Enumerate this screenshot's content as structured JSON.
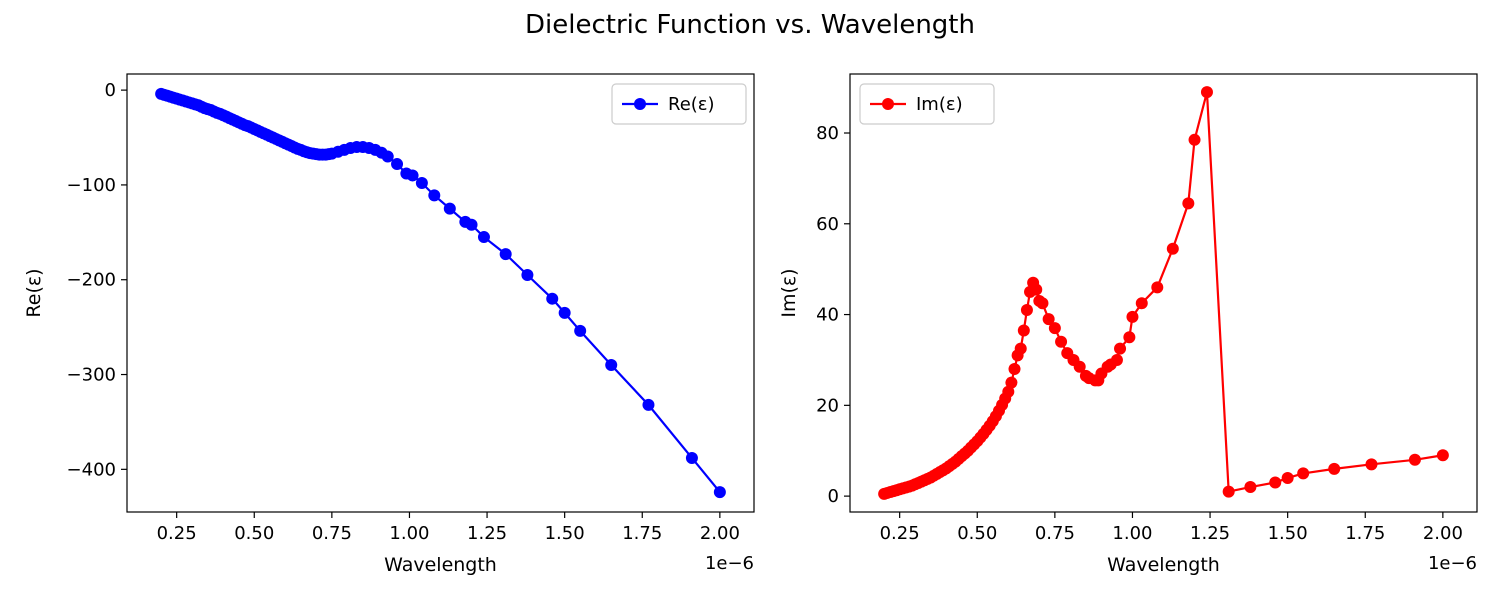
{
  "figure": {
    "title": "Dielectric Function vs. Wavelength"
  },
  "chart_data": [
    {
      "type": "line",
      "marker": "circle",
      "color": "#0000ff",
      "xlabel": "Wavelength",
      "ylabel": "Re(ε)",
      "x_offset_label": "1e−6",
      "xlim": [
        0.09,
        2.11
      ],
      "ylim": [
        -445,
        17
      ],
      "xticks": [
        0.25,
        0.5,
        0.75,
        1.0,
        1.25,
        1.5,
        1.75,
        2.0
      ],
      "xtick_labels": [
        "0.25",
        "0.50",
        "0.75",
        "1.00",
        "1.25",
        "1.50",
        "1.75",
        "2.00"
      ],
      "yticks": [
        0,
        -100,
        -200,
        -300,
        -400
      ],
      "ytick_labels": [
        "0",
        "−100",
        "−200",
        "−300",
        "−400"
      ],
      "grid": false,
      "legend": {
        "position": "top-right",
        "entries": [
          "Re(ε)"
        ]
      },
      "series": [
        {
          "name": "Re(ε)",
          "x": [
            0.2,
            0.21,
            0.22,
            0.23,
            0.24,
            0.25,
            0.26,
            0.27,
            0.28,
            0.29,
            0.3,
            0.31,
            0.32,
            0.33,
            0.34,
            0.35,
            0.36,
            0.37,
            0.38,
            0.39,
            0.4,
            0.41,
            0.42,
            0.43,
            0.44,
            0.45,
            0.46,
            0.47,
            0.48,
            0.49,
            0.5,
            0.51,
            0.52,
            0.53,
            0.54,
            0.55,
            0.56,
            0.57,
            0.58,
            0.59,
            0.6,
            0.61,
            0.62,
            0.63,
            0.64,
            0.65,
            0.66,
            0.67,
            0.68,
            0.69,
            0.7,
            0.71,
            0.72,
            0.73,
            0.74,
            0.75,
            0.77,
            0.79,
            0.81,
            0.83,
            0.85,
            0.87,
            0.89,
            0.91,
            0.93,
            0.96,
            0.99,
            1.01,
            1.04,
            1.08,
            1.13,
            1.18,
            1.2,
            1.24,
            1.31,
            1.38,
            1.46,
            1.5,
            1.55,
            1.65,
            1.77,
            1.91,
            2.0
          ],
          "y": [
            -4,
            -5,
            -6,
            -7,
            -8,
            -9,
            -10,
            -11,
            -12,
            -13,
            -14,
            -15,
            -16,
            -17.5,
            -19,
            -20,
            -21,
            -22.5,
            -24,
            -25,
            -26.5,
            -28,
            -29.5,
            -31,
            -32.5,
            -34,
            -35.5,
            -37,
            -38,
            -39.5,
            -41,
            -42.5,
            -44,
            -45.5,
            -47,
            -48.5,
            -50,
            -51.5,
            -53,
            -54.5,
            -56,
            -57.5,
            -59,
            -60.5,
            -62,
            -63,
            -64.5,
            -65.5,
            -66.5,
            -67,
            -67.5,
            -68,
            -68,
            -68,
            -67.5,
            -67,
            -65,
            -63,
            -61,
            -60,
            -60,
            -61,
            -63,
            -66,
            -70,
            -78,
            -88,
            -90,
            -98,
            -111,
            -125,
            -139,
            -142,
            -155,
            -173,
            -195,
            -220,
            -235,
            -254,
            -290,
            -332,
            -388,
            -424
          ]
        }
      ]
    },
    {
      "type": "line",
      "marker": "circle",
      "color": "#ff0000",
      "xlabel": "Wavelength",
      "ylabel": "Im(ε)",
      "x_offset_label": "1e−6",
      "xlim": [
        0.09,
        2.11
      ],
      "ylim": [
        -3.5,
        93
      ],
      "xticks": [
        0.25,
        0.5,
        0.75,
        1.0,
        1.25,
        1.5,
        1.75,
        2.0
      ],
      "xtick_labels": [
        "0.25",
        "0.50",
        "0.75",
        "1.00",
        "1.25",
        "1.50",
        "1.75",
        "2.00"
      ],
      "yticks": [
        0,
        20,
        40,
        60,
        80
      ],
      "ytick_labels": [
        "0",
        "20",
        "40",
        "60",
        "80"
      ],
      "grid": false,
      "legend": {
        "position": "top-left",
        "entries": [
          "Im(ε)"
        ]
      },
      "series": [
        {
          "name": "Im(ε)",
          "x": [
            0.2,
            0.21,
            0.22,
            0.23,
            0.24,
            0.25,
            0.26,
            0.27,
            0.28,
            0.29,
            0.3,
            0.31,
            0.32,
            0.33,
            0.34,
            0.35,
            0.36,
            0.37,
            0.38,
            0.39,
            0.4,
            0.41,
            0.42,
            0.43,
            0.44,
            0.45,
            0.46,
            0.47,
            0.48,
            0.49,
            0.5,
            0.51,
            0.52,
            0.53,
            0.54,
            0.55,
            0.56,
            0.57,
            0.58,
            0.59,
            0.6,
            0.61,
            0.62,
            0.63,
            0.64,
            0.65,
            0.66,
            0.67,
            0.68,
            0.69,
            0.7,
            0.71,
            0.73,
            0.75,
            0.77,
            0.79,
            0.81,
            0.83,
            0.85,
            0.86,
            0.88,
            0.89,
            0.9,
            0.92,
            0.93,
            0.95,
            0.96,
            0.99,
            1.0,
            1.03,
            1.08,
            1.13,
            1.18,
            1.2,
            1.24,
            1.31,
            1.38,
            1.46,
            1.5,
            1.55,
            1.65,
            1.77,
            1.91,
            2.0
          ],
          "y": [
            0.5,
            0.7,
            0.9,
            1.1,
            1.3,
            1.5,
            1.7,
            1.9,
            2.1,
            2.3,
            2.6,
            2.9,
            3.2,
            3.5,
            3.8,
            4.1,
            4.5,
            4.9,
            5.3,
            5.7,
            6.1,
            6.6,
            7.1,
            7.6,
            8.2,
            8.8,
            9.4,
            10.0,
            10.7,
            11.4,
            12.1,
            12.9,
            13.7,
            14.6,
            15.5,
            16.5,
            17.6,
            18.8,
            20.1,
            21.5,
            23.0,
            25.0,
            28.0,
            31.0,
            32.5,
            36.5,
            41.0,
            45.0,
            47.0,
            45.5,
            43.0,
            42.5,
            39.0,
            37.0,
            34.0,
            31.5,
            30.0,
            28.5,
            26.5,
            26.0,
            25.5,
            25.5,
            27.0,
            28.5,
            29.0,
            30.0,
            32.5,
            35.0,
            39.5,
            42.5,
            46.0,
            54.5,
            64.5,
            78.5,
            89.0,
            1.0,
            2.0,
            3.0,
            4.0,
            5.0,
            6.0,
            7.0,
            8.0,
            9.0
          ]
        }
      ]
    }
  ]
}
